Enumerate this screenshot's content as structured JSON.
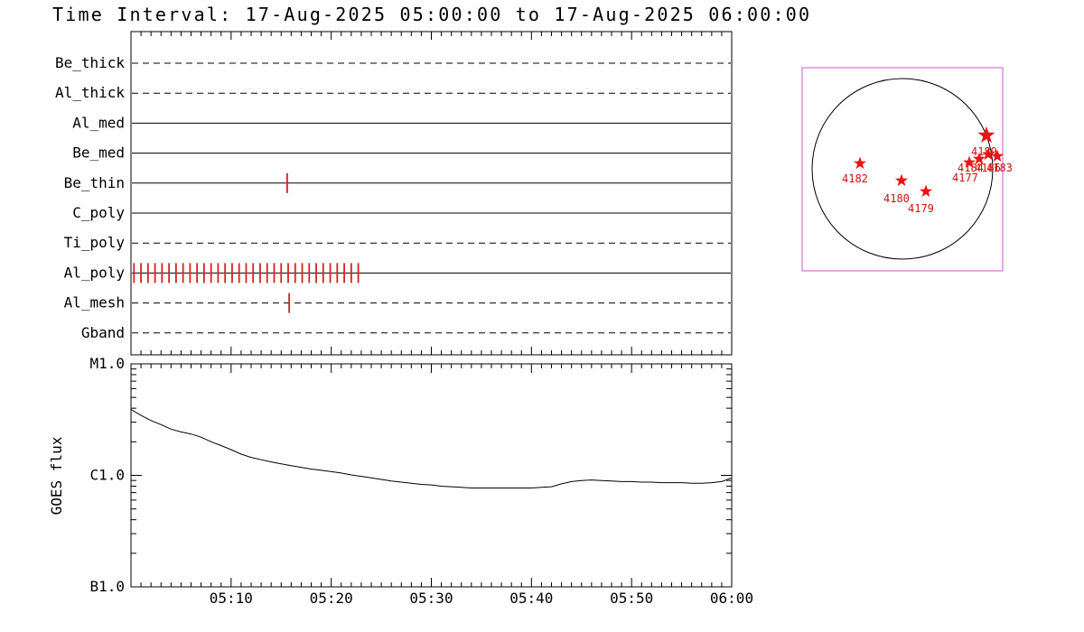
{
  "title": "Time Interval: 17-Aug-2025 05:00:00 to 17-Aug-2025 06:00:00",
  "colors": {
    "foreground": "#000000",
    "event_tick": "#d42222",
    "star": "#ee1111",
    "region_label": "#cc1111",
    "inset_border": "#cc55cc",
    "background": "#ffffff"
  },
  "chart_data": [
    {
      "id": "xrt-filter-timeline",
      "type": "timeline",
      "duration_minutes": 60,
      "rows": [
        {
          "label": "Be_thick",
          "line": "dashed",
          "events_min": []
        },
        {
          "label": "Al_thick",
          "line": "dashed",
          "events_min": []
        },
        {
          "label": "Al_med",
          "line": "solid",
          "events_min": []
        },
        {
          "label": "Be_med",
          "line": "solid",
          "events_min": []
        },
        {
          "label": "Be_thin",
          "line": "solid",
          "events_min": [
            15.6
          ]
        },
        {
          "label": "C_poly",
          "line": "solid",
          "events_min": []
        },
        {
          "label": "Ti_poly",
          "line": "dashed",
          "events_min": []
        },
        {
          "label": "Al_poly",
          "line": "solid",
          "events_min": [
            0.3,
            1.0,
            1.7,
            2.4,
            3.1,
            3.8,
            4.5,
            5.2,
            5.9,
            6.6,
            7.3,
            8.0,
            8.7,
            9.4,
            10.1,
            10.8,
            11.5,
            12.2,
            12.9,
            13.6,
            14.3,
            15.0,
            15.7,
            16.4,
            17.1,
            17.8,
            18.5,
            19.2,
            19.9,
            20.6,
            21.3,
            22.0,
            22.7
          ]
        },
        {
          "label": "Al_mesh",
          "line": "dashed",
          "events_min": [
            15.8
          ]
        },
        {
          "label": "Gband",
          "line": "dashed",
          "events_min": []
        }
      ]
    },
    {
      "id": "goes-flux",
      "type": "line",
      "ylabel": "GOES flux",
      "ylog_range": [
        1e-07,
        1e-05
      ],
      "yticks": [
        {
          "label": "M1.0",
          "flux": 1e-05
        },
        {
          "label": "C1.0",
          "flux": 1e-06
        },
        {
          "label": "B1.0",
          "flux": 1e-07
        }
      ],
      "xticks": [
        {
          "label": "05:10",
          "minute": 10
        },
        {
          "label": "05:20",
          "minute": 20
        },
        {
          "label": "05:30",
          "minute": 30
        },
        {
          "label": "05:40",
          "minute": 40
        },
        {
          "label": "05:50",
          "minute": 50
        },
        {
          "label": "06:00",
          "minute": 60
        }
      ],
      "series": [
        {
          "name": "GOES flux",
          "points": [
            [
              0,
              3.9e-06
            ],
            [
              1,
              3.45e-06
            ],
            [
              2,
              3.1e-06
            ],
            [
              3,
              2.85e-06
            ],
            [
              4,
              2.6e-06
            ],
            [
              5,
              2.45e-06
            ],
            [
              6,
              2.35e-06
            ],
            [
              7,
              2.2e-06
            ],
            [
              8,
              2e-06
            ],
            [
              9,
              1.85e-06
            ],
            [
              10,
              1.7e-06
            ],
            [
              11,
              1.55e-06
            ],
            [
              12,
              1.45e-06
            ],
            [
              13,
              1.38e-06
            ],
            [
              14,
              1.32e-06
            ],
            [
              15,
              1.27e-06
            ],
            [
              16,
              1.22e-06
            ],
            [
              17,
              1.18e-06
            ],
            [
              18,
              1.14e-06
            ],
            [
              19,
              1.11e-06
            ],
            [
              20,
              1.08e-06
            ],
            [
              21,
              1.05e-06
            ],
            [
              22,
              1.01e-06
            ],
            [
              23,
              9.8e-07
            ],
            [
              24,
              9.5e-07
            ],
            [
              25,
              9.2e-07
            ],
            [
              26,
              8.9e-07
            ],
            [
              27,
              8.7e-07
            ],
            [
              28,
              8.5e-07
            ],
            [
              29,
              8.3e-07
            ],
            [
              30,
              8.2e-07
            ],
            [
              31,
              8e-07
            ],
            [
              32,
              7.9e-07
            ],
            [
              33,
              7.8e-07
            ],
            [
              34,
              7.7e-07
            ],
            [
              35,
              7.7e-07
            ],
            [
              36,
              7.7e-07
            ],
            [
              37,
              7.7e-07
            ],
            [
              38,
              7.7e-07
            ],
            [
              39,
              7.7e-07
            ],
            [
              40,
              7.7e-07
            ],
            [
              41,
              7.8e-07
            ],
            [
              42,
              7.9e-07
            ],
            [
              43,
              8.4e-07
            ],
            [
              44,
              8.8e-07
            ],
            [
              45,
              9e-07
            ],
            [
              46,
              9.1e-07
            ],
            [
              47,
              9e-07
            ],
            [
              48,
              8.9e-07
            ],
            [
              49,
              8.8e-07
            ],
            [
              50,
              8.8e-07
            ],
            [
              51,
              8.7e-07
            ],
            [
              52,
              8.7e-07
            ],
            [
              53,
              8.6e-07
            ],
            [
              54,
              8.6e-07
            ],
            [
              55,
              8.6e-07
            ],
            [
              56,
              8.5e-07
            ],
            [
              57,
              8.5e-07
            ],
            [
              58,
              8.6e-07
            ],
            [
              59,
              8.8e-07
            ],
            [
              60,
              9.5e-07
            ]
          ]
        }
      ]
    },
    {
      "id": "solar-disk-inset",
      "type": "scatter",
      "regions": [
        {
          "noaa": "4182",
          "star": [
            952,
            181
          ],
          "label": [
            932,
            202
          ],
          "big": false
        },
        {
          "noaa": "4180",
          "star": [
            998,
            200
          ],
          "label": [
            978,
            224
          ],
          "big": false
        },
        {
          "noaa": "4179",
          "star": [
            1025,
            212
          ],
          "label": [
            1005,
            235
          ],
          "big": false
        },
        {
          "noaa": "4189",
          "star": [
            1092,
            150
          ],
          "label": [
            1075,
            172
          ],
          "big": true
        },
        {
          "noaa": "4184",
          "star": [
            1084,
            176
          ],
          "label": [
            1060,
            190
          ],
          "big": false
        },
        {
          "noaa": "4186",
          "star": [
            1094,
            171
          ],
          "label": [
            1079,
            190
          ],
          "big": false
        },
        {
          "noaa": "4183",
          "star": [
            1104,
            173
          ],
          "label": [
            1092,
            190
          ],
          "big": false
        },
        {
          "noaa": "4177",
          "star": [
            1073,
            180
          ],
          "label": [
            1054,
            201
          ],
          "big": false
        }
      ]
    }
  ]
}
